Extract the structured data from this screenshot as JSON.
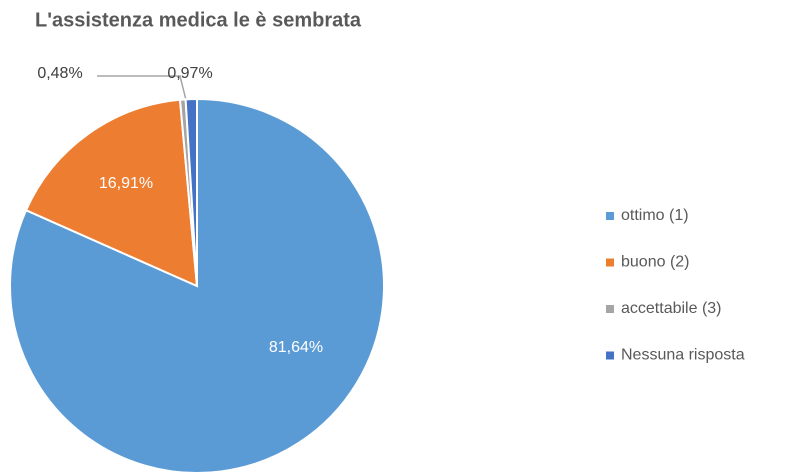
{
  "chart_data": {
    "type": "pie",
    "title": "L'assistenza medica le è sembrata",
    "categories": [
      "ottimo (1)",
      "buono (2)",
      "accettabile (3)",
      "Nessuna risposta"
    ],
    "values": [
      81.64,
      16.91,
      0.48,
      0.97
    ],
    "value_labels": [
      "81,64%",
      "16,91%",
      "0,48%",
      "0,97%"
    ],
    "colors": [
      "#5b9bd5",
      "#ed7d31",
      "#a5a5a5",
      "#4472c4"
    ],
    "legend": "right"
  }
}
